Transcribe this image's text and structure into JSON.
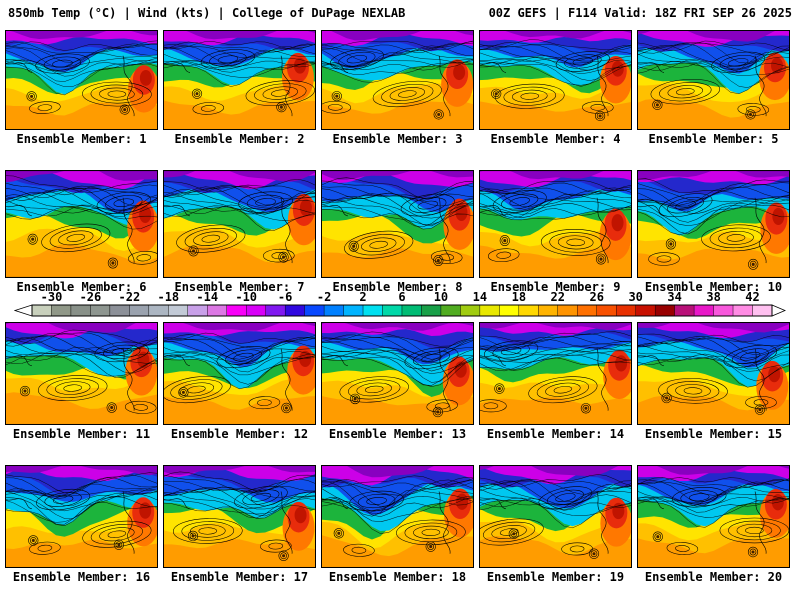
{
  "header": {
    "left": "850mb Temp (°C) | Wind (kts) | College of DuPage NEXLAB",
    "right": "00Z GEFS | F114 Valid: 18Z FRI SEP 26 2025"
  },
  "panels": {
    "items": [
      {
        "id": 1,
        "label": "Ensemble Member: 1"
      },
      {
        "id": 2,
        "label": "Ensemble Member: 2"
      },
      {
        "id": 3,
        "label": "Ensemble Member: 3"
      },
      {
        "id": 4,
        "label": "Ensemble Member: 4"
      },
      {
        "id": 5,
        "label": "Ensemble Member: 5"
      },
      {
        "id": 6,
        "label": "Ensemble Member: 6"
      },
      {
        "id": 7,
        "label": "Ensemble Member: 7"
      },
      {
        "id": 8,
        "label": "Ensemble Member: 8"
      },
      {
        "id": 9,
        "label": "Ensemble Member: 9"
      },
      {
        "id": 10,
        "label": "Ensemble Member: 10"
      },
      {
        "id": 11,
        "label": "Ensemble Member: 11"
      },
      {
        "id": 12,
        "label": "Ensemble Member: 12"
      },
      {
        "id": 13,
        "label": "Ensemble Member: 13"
      },
      {
        "id": 14,
        "label": "Ensemble Member: 14"
      },
      {
        "id": 15,
        "label": "Ensemble Member: 15"
      },
      {
        "id": 16,
        "label": "Ensemble Member: 16"
      },
      {
        "id": 17,
        "label": "Ensemble Member: 17"
      },
      {
        "id": 18,
        "label": "Ensemble Member: 18"
      },
      {
        "id": 19,
        "label": "Ensemble Member: 19"
      },
      {
        "id": 20,
        "label": "Ensemble Member: 20"
      }
    ]
  },
  "colorbar": {
    "unit": "°C",
    "domain": [
      -32,
      44
    ],
    "segment_step_c": 2,
    "tick_labels": [
      "-30",
      "-26",
      "-22",
      "-18",
      "-14",
      "-10",
      "-6",
      "-2",
      "2",
      "6",
      "10",
      "14",
      "18",
      "22",
      "26",
      "30",
      "34",
      "38",
      "42"
    ],
    "segment_colors": [
      "#c8d0bc",
      "#909888",
      "#889088",
      "#8e9690",
      "#8c9098",
      "#9aa2ae",
      "#acb6c2",
      "#c2cad6",
      "#c8a0e8",
      "#dc78e4",
      "#f800f8",
      "#d800f8",
      "#8018f0",
      "#3008e0",
      "#0848ff",
      "#0080ff",
      "#00b4ff",
      "#00e0f0",
      "#00d8a8",
      "#00bc74",
      "#18a048",
      "#50ac20",
      "#a0cc10",
      "#e8e800",
      "#ffff00",
      "#ffd800",
      "#ffb400",
      "#ff9400",
      "#ff7000",
      "#f85000",
      "#e83000",
      "#c81000",
      "#980000",
      "#b81078",
      "#e818c8",
      "#f858dc",
      "#ff8ce4",
      "#ffc0f0"
    ]
  },
  "map_palette": {
    "base_orange": "#ff9c00",
    "amber": "#ffc000",
    "yellow": "#ffe400",
    "green": "#1cb43c",
    "cyan": "#00c8f0",
    "blue": "#1050ec",
    "dark_blue": "#2428cc",
    "magenta": "#cc00e8",
    "purple": "#8800c0",
    "hot_halo": "#ff7800",
    "hot_red": "#e82c0c",
    "hot_core": "#c01400",
    "contour": "#000000",
    "storm_core": "#402000"
  }
}
